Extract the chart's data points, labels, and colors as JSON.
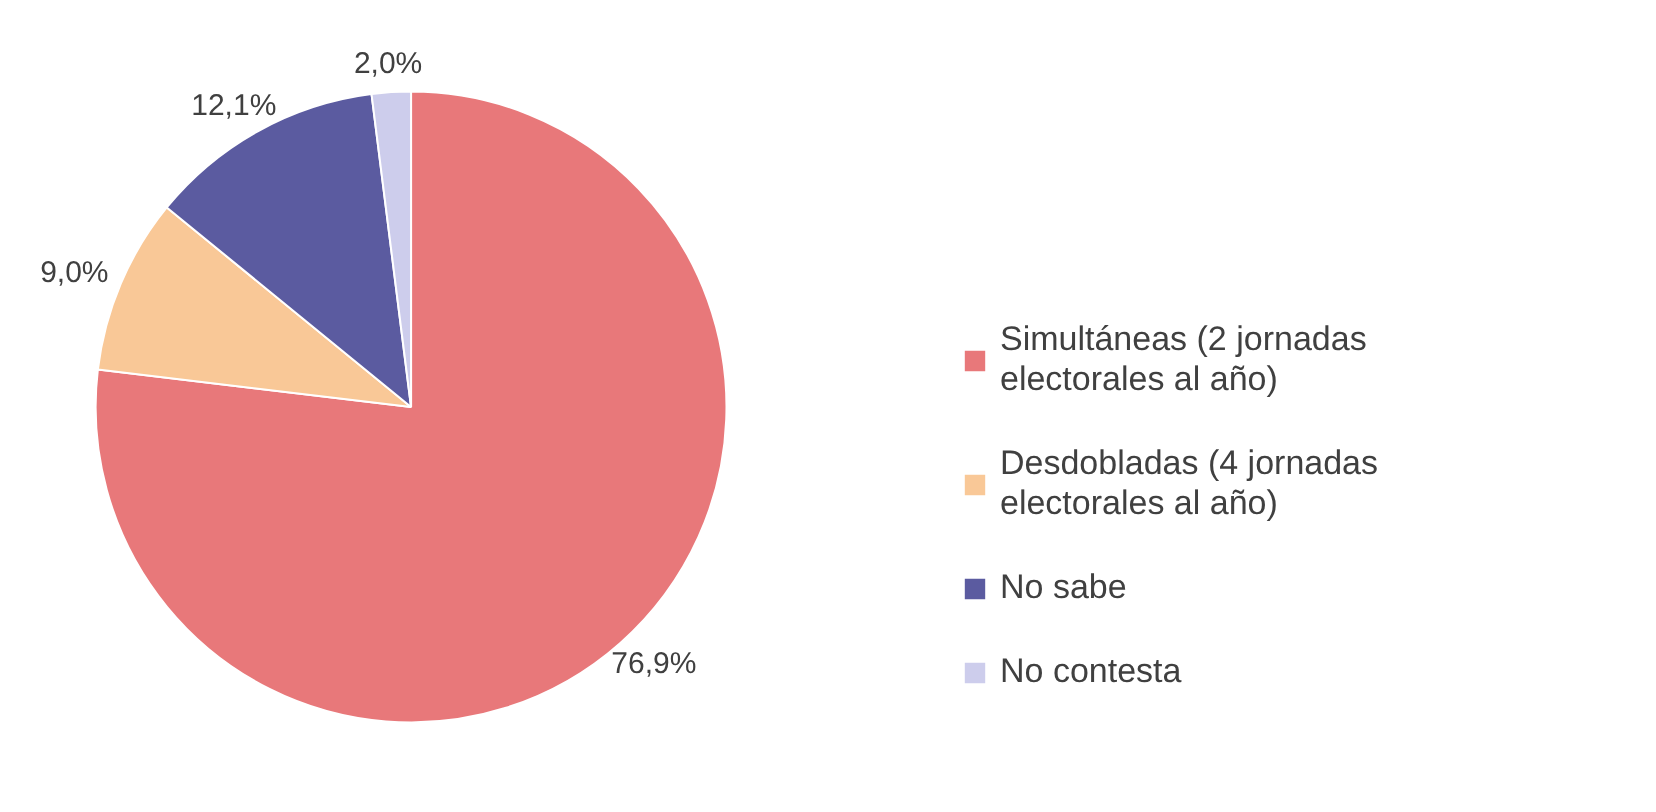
{
  "chart_data": {
    "type": "pie",
    "categories": [
      "Simultáneas (2 jornadas electorales al año)",
      "Desdobladas (4 jornadas electorales al año)",
      "No sabe",
      "No contesta"
    ],
    "values": [
      76.9,
      9.0,
      12.1,
      2.0
    ],
    "colors": [
      "#e8787a",
      "#f9c897",
      "#5b5ba0",
      "#cdcdec"
    ],
    "value_labels": [
      "76,9%",
      "9,0%",
      "12,1%",
      "2,0%"
    ],
    "legend": "right"
  }
}
